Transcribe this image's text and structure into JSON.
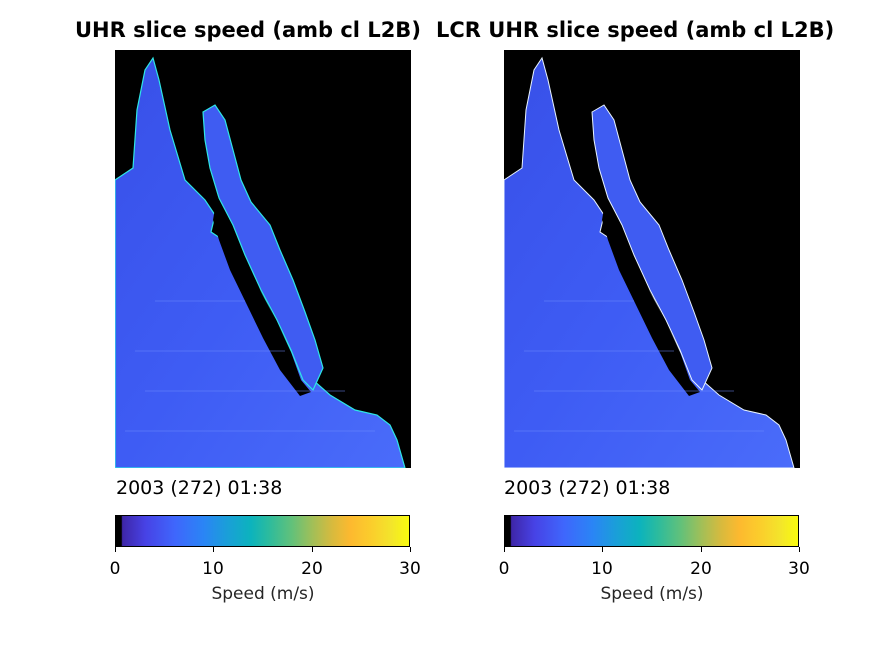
{
  "panels": [
    {
      "title": "UHR slice speed (amb cl L2B)",
      "timestamp": "2003 (272) 01:38",
      "colorbar_label": "Speed (m/s)",
      "colorbar_ticks": [
        "0",
        "10",
        "20",
        "30"
      ],
      "colorbar_range": [
        0,
        30
      ]
    },
    {
      "title": "LCR UHR slice speed (amb cl L2B)",
      "timestamp": "2003 (272) 01:38",
      "colorbar_label": "Speed (m/s)",
      "colorbar_ticks": [
        "0",
        "10",
        "20",
        "30"
      ],
      "colorbar_range": [
        0,
        30
      ]
    }
  ],
  "colors": {
    "land": "#000000",
    "ocean_speed": "#3f5cf2",
    "coast_edge": "#2ee6e6"
  }
}
